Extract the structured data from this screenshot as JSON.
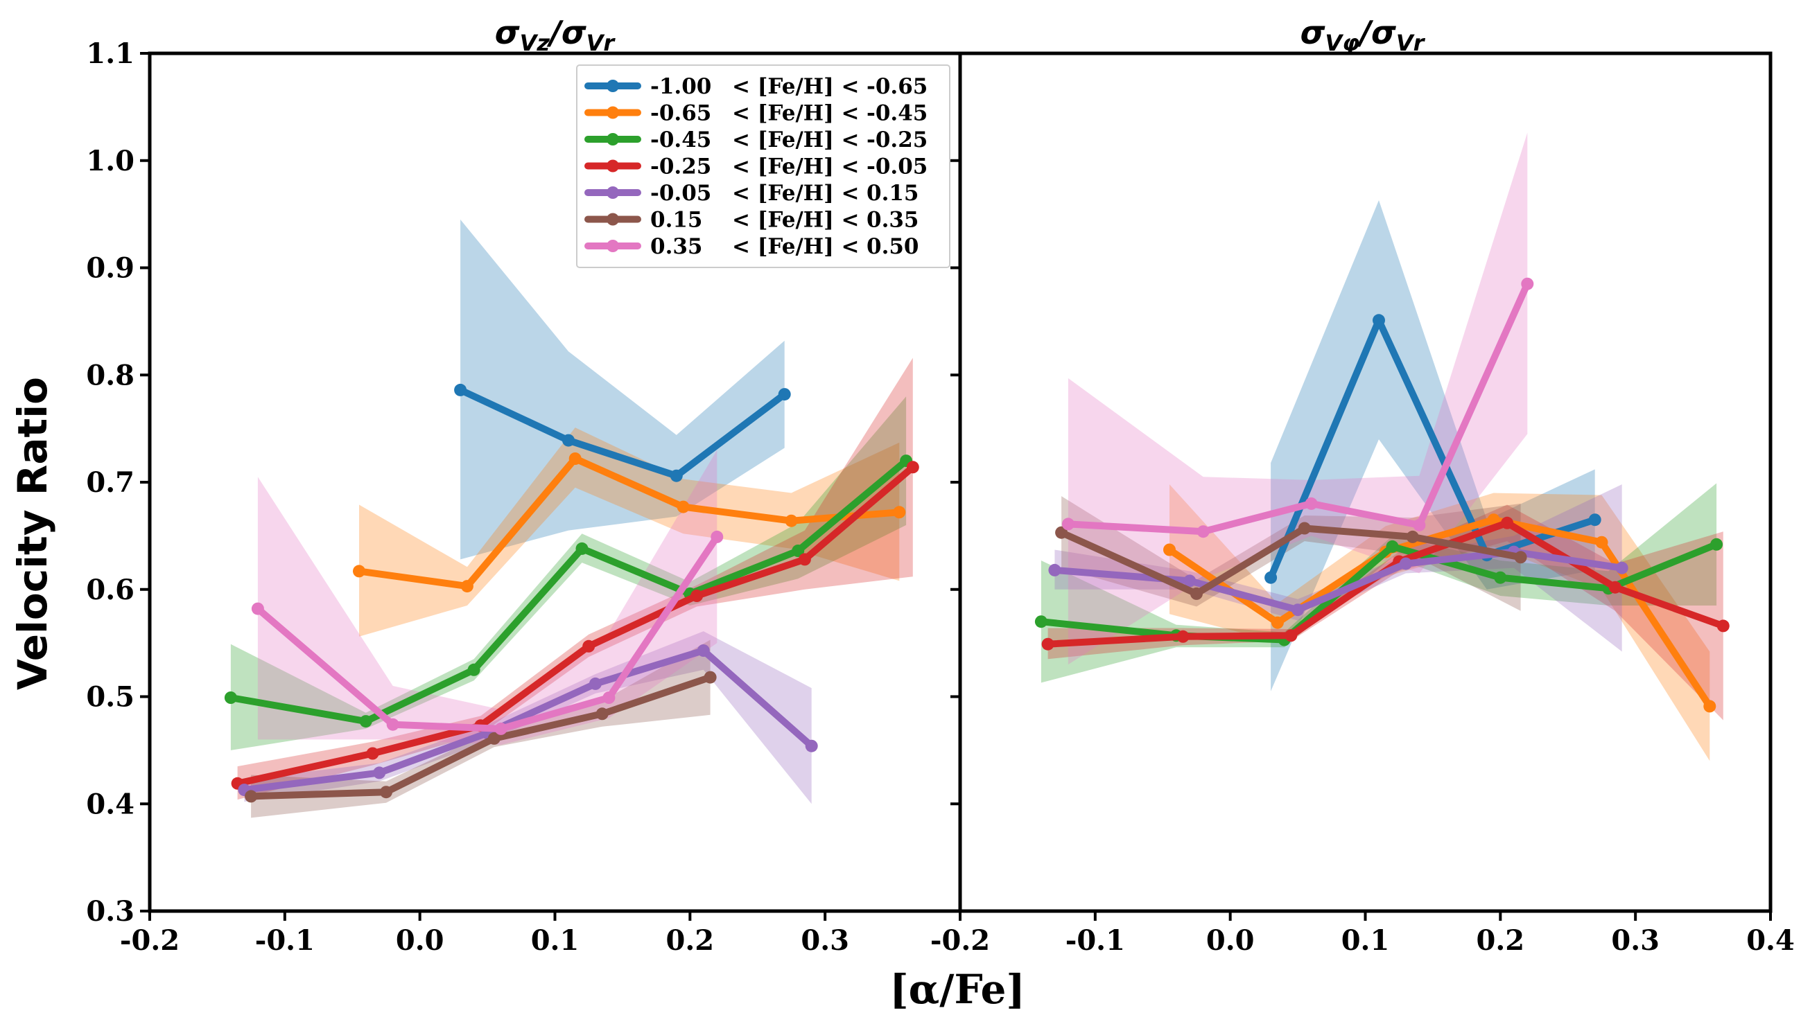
{
  "chart_data": [
    {
      "type": "line",
      "title": "σVz/σVr",
      "title_main": "σ",
      "title_sub1": "Vz",
      "title_slash": "/σ",
      "title_sub2": "Vr",
      "xlabel": "[α/Fe]",
      "ylabel": "Velocity Ratio",
      "xlim": [
        -0.2,
        0.4
      ],
      "ylim": [
        0.3,
        1.1
      ],
      "xticks": [
        "-0.2",
        "-0.1",
        "0.0",
        "0.1",
        "0.2",
        "0.3"
      ],
      "yticks": [
        "0.3",
        "0.4",
        "0.5",
        "0.6",
        "0.7",
        "0.8",
        "0.9",
        "1.0",
        "1.1"
      ],
      "legend_position": "top-right",
      "series": [
        {
          "name": "-1.00 < [Fe/H] < -0.65",
          "range": [
            "-1.00",
            "-0.65"
          ],
          "color": "#1f77b4",
          "x": [
            0.03,
            0.11,
            0.19,
            0.27
          ],
          "y": [
            0.786,
            0.739,
            0.706,
            0.782
          ],
          "lower": [
            0.628,
            0.655,
            0.668,
            0.732
          ],
          "upper": [
            0.945,
            0.822,
            0.744,
            0.832
          ]
        },
        {
          "name": "-0.65 < [Fe/H] < -0.45",
          "range": [
            "-0.65",
            "-0.45"
          ],
          "color": "#ff7f0e",
          "x": [
            -0.045,
            0.035,
            0.115,
            0.195,
            0.275,
            0.355
          ],
          "y": [
            0.617,
            0.603,
            0.722,
            0.677,
            0.664,
            0.672
          ],
          "lower": [
            0.556,
            0.585,
            0.695,
            0.652,
            0.638,
            0.608
          ],
          "upper": [
            0.679,
            0.621,
            0.751,
            0.703,
            0.69,
            0.737
          ]
        },
        {
          "name": "-0.45 < [Fe/H] < -0.25",
          "range": [
            "-0.45",
            "-0.25"
          ],
          "color": "#2ca02c",
          "x": [
            -0.14,
            -0.04,
            0.04,
            0.12,
            0.2,
            0.28,
            0.36
          ],
          "y": [
            0.499,
            0.477,
            0.525,
            0.638,
            0.596,
            0.636,
            0.72
          ],
          "lower": [
            0.45,
            0.47,
            0.515,
            0.625,
            0.585,
            0.61,
            0.66
          ],
          "upper": [
            0.549,
            0.485,
            0.535,
            0.652,
            0.607,
            0.662,
            0.78
          ]
        },
        {
          "name": "-0.25 < [Fe/H] < -0.05",
          "range": [
            "-0.25",
            "-0.05"
          ],
          "color": "#d62728",
          "x": [
            -0.135,
            -0.035,
            0.045,
            0.125,
            0.205,
            0.285,
            0.365
          ],
          "y": [
            0.419,
            0.447,
            0.473,
            0.547,
            0.594,
            0.628,
            0.714
          ],
          "lower": [
            0.404,
            0.436,
            0.465,
            0.537,
            0.584,
            0.6,
            0.612
          ],
          "upper": [
            0.435,
            0.458,
            0.482,
            0.558,
            0.604,
            0.655,
            0.816
          ]
        },
        {
          "name": "-0.05 < [Fe/H] < 0.15",
          "range": [
            "-0.05",
            "0.15"
          ],
          "color": "#9467bd",
          "x": [
            -0.13,
            -0.03,
            0.05,
            0.13,
            0.21,
            0.29
          ],
          "y": [
            0.413,
            0.429,
            0.466,
            0.512,
            0.543,
            0.454
          ],
          "lower": [
            0.402,
            0.421,
            0.458,
            0.503,
            0.525,
            0.4
          ],
          "upper": [
            0.423,
            0.438,
            0.474,
            0.521,
            0.561,
            0.508
          ]
        },
        {
          "name": "0.15 < [Fe/H] < 0.35",
          "range": [
            "0.15",
            "0.35"
          ],
          "color": "#8c564b",
          "x": [
            -0.125,
            -0.025,
            0.055,
            0.135,
            0.215
          ],
          "y": [
            0.407,
            0.411,
            0.461,
            0.484,
            0.518
          ],
          "lower": [
            0.387,
            0.401,
            0.453,
            0.472,
            0.483
          ],
          "upper": [
            0.427,
            0.421,
            0.469,
            0.496,
            0.553
          ]
        },
        {
          "name": "0.35 < [Fe/H] < 0.50",
          "range": [
            "0.35",
            "0.50"
          ],
          "color": "#e377c2",
          "x": [
            -0.12,
            -0.02,
            0.06,
            0.14,
            0.22
          ],
          "y": [
            0.582,
            0.474,
            0.47,
            0.499,
            0.649
          ],
          "lower": [
            0.46,
            0.46,
            0.455,
            0.48,
            0.55
          ],
          "upper": [
            0.705,
            0.51,
            0.488,
            0.56,
            0.73
          ]
        }
      ]
    },
    {
      "type": "line",
      "title": "σVφ/σVr",
      "title_main": "σ",
      "title_sub1": "Vφ",
      "title_slash": "/σ",
      "title_sub2": "Vr",
      "xlabel": "[α/Fe]",
      "ylabel": "Velocity Ratio",
      "xlim": [
        -0.2,
        0.4
      ],
      "ylim": [
        0.3,
        1.1
      ],
      "xticks": [
        "-0.2",
        "-0.1",
        "0.0",
        "0.1",
        "0.2",
        "0.3",
        "0.4"
      ],
      "yticks": [
        "0.3",
        "0.4",
        "0.5",
        "0.6",
        "0.7",
        "0.8",
        "0.9",
        "1.0",
        "1.1"
      ],
      "series": [
        {
          "name": "-1.00 < [Fe/H] < -0.65",
          "color": "#1f77b4",
          "x": [
            0.03,
            0.11,
            0.19,
            0.27
          ],
          "y": [
            0.611,
            0.851,
            0.632,
            0.665
          ],
          "lower": [
            0.505,
            0.74,
            0.6,
            0.618
          ],
          "upper": [
            0.718,
            0.963,
            0.665,
            0.712
          ]
        },
        {
          "name": "-0.65 < [Fe/H] < -0.45",
          "color": "#ff7f0e",
          "x": [
            -0.045,
            0.035,
            0.115,
            0.195,
            0.275,
            0.355
          ],
          "y": [
            0.637,
            0.569,
            0.635,
            0.665,
            0.644,
            0.491
          ],
          "lower": [
            0.577,
            0.551,
            0.612,
            0.64,
            0.6,
            0.44
          ],
          "upper": [
            0.698,
            0.587,
            0.659,
            0.69,
            0.688,
            0.542
          ]
        },
        {
          "name": "-0.45 < [Fe/H] < -0.25",
          "color": "#2ca02c",
          "x": [
            -0.14,
            -0.04,
            0.04,
            0.12,
            0.2,
            0.28,
            0.36
          ],
          "y": [
            0.57,
            0.557,
            0.553,
            0.64,
            0.611,
            0.601,
            0.642
          ],
          "lower": [
            0.513,
            0.546,
            0.546,
            0.63,
            0.594,
            0.585,
            0.585
          ],
          "upper": [
            0.627,
            0.567,
            0.56,
            0.65,
            0.627,
            0.617,
            0.699
          ]
        },
        {
          "name": "-0.25 < [Fe/H] < -0.05",
          "color": "#d62728",
          "x": [
            -0.135,
            -0.035,
            0.045,
            0.125,
            0.205,
            0.285,
            0.365
          ],
          "y": [
            0.549,
            0.556,
            0.557,
            0.626,
            0.662,
            0.602,
            0.566
          ],
          "lower": [
            0.535,
            0.548,
            0.552,
            0.617,
            0.645,
            0.58,
            0.478
          ],
          "upper": [
            0.564,
            0.564,
            0.563,
            0.635,
            0.679,
            0.624,
            0.654
          ]
        },
        {
          "name": "-0.05 < [Fe/H] < 0.15",
          "color": "#9467bd",
          "x": [
            -0.13,
            -0.03,
            0.05,
            0.13,
            0.21,
            0.29
          ],
          "y": [
            0.618,
            0.608,
            0.581,
            0.624,
            0.635,
            0.62
          ],
          "lower": [
            0.6,
            0.6,
            0.571,
            0.615,
            0.62,
            0.542
          ],
          "upper": [
            0.637,
            0.617,
            0.591,
            0.632,
            0.65,
            0.698
          ]
        },
        {
          "name": "0.15 < [Fe/H] < 0.35",
          "color": "#8c564b",
          "x": [
            -0.125,
            -0.025,
            0.055,
            0.135,
            0.215
          ],
          "y": [
            0.653,
            0.596,
            0.657,
            0.649,
            0.63
          ],
          "lower": [
            0.62,
            0.584,
            0.645,
            0.632,
            0.58
          ],
          "upper": [
            0.687,
            0.609,
            0.669,
            0.667,
            0.68
          ]
        },
        {
          "name": "0.35 < [Fe/H] < 0.50",
          "color": "#e377c2",
          "x": [
            -0.12,
            -0.02,
            0.06,
            0.14,
            0.22
          ],
          "y": [
            0.661,
            0.654,
            0.68,
            0.66,
            0.885
          ],
          "lower": [
            0.53,
            0.61,
            0.65,
            0.615,
            0.745
          ],
          "upper": [
            0.797,
            0.705,
            0.702,
            0.706,
            1.026
          ]
        }
      ]
    }
  ]
}
